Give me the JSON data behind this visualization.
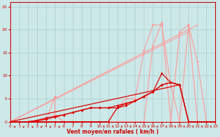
{
  "xlabel": "Vent moyen/en rafales ( km/h )",
  "xlim": [
    0,
    23
  ],
  "ylim": [
    0,
    26
  ],
  "xticks": [
    0,
    1,
    2,
    3,
    4,
    5,
    6,
    7,
    8,
    9,
    10,
    11,
    12,
    13,
    14,
    15,
    16,
    17,
    18,
    19,
    20,
    21,
    22,
    23
  ],
  "yticks": [
    0,
    5,
    10,
    15,
    20,
    25
  ],
  "bg_color": "#cce8e8",
  "grid_color": "#aacccc",
  "salmon_line1_x": [
    0,
    1,
    2,
    3,
    4,
    5,
    6,
    7,
    8,
    9,
    10,
    11,
    12,
    13,
    14,
    15,
    16,
    17,
    18,
    19,
    20,
    21,
    22,
    23
  ],
  "salmon_line1_y": [
    0,
    0,
    0,
    0,
    0,
    0,
    0,
    0,
    0,
    0,
    0,
    0,
    3.0,
    5.0,
    5.0,
    15.5,
    21.0,
    21.0,
    8.0,
    0,
    21.0,
    13.0,
    0,
    0
  ],
  "salmon_line2_x": [
    0,
    1,
    2,
    3,
    4,
    5,
    6,
    7,
    8,
    9,
    10,
    11,
    12,
    13,
    14,
    15,
    16,
    17,
    18,
    19,
    20,
    21,
    22,
    23
  ],
  "salmon_line2_y": [
    0,
    0,
    0,
    0,
    0,
    0,
    0,
    0,
    0,
    0,
    0,
    0,
    0,
    0,
    0,
    0,
    16.5,
    21.5,
    0,
    19.5,
    21.0,
    0,
    0,
    0
  ],
  "salmon_line3_x": [
    0,
    20
  ],
  "salmon_line3_y": [
    0,
    19.5
  ],
  "salmon_line4_x": [
    0,
    21
  ],
  "salmon_line4_y": [
    0,
    21.0
  ],
  "dark_line1_x": [
    0,
    1,
    2,
    3,
    4,
    5,
    6,
    7,
    8,
    9,
    10,
    11,
    12,
    13,
    14,
    15,
    16,
    17,
    18,
    19,
    20,
    21,
    22,
    23
  ],
  "dark_line1_y": [
    0,
    0,
    0,
    0,
    0,
    5.5,
    1.5,
    0,
    0,
    0,
    0,
    0,
    0,
    0,
    0,
    0,
    0,
    0,
    0,
    0,
    0,
    0,
    0,
    0
  ],
  "red_line1_x": [
    0,
    1,
    2,
    3,
    4,
    5,
    6,
    7,
    8,
    9,
    10,
    11,
    12,
    13,
    14,
    15,
    16,
    17,
    18,
    19,
    20,
    21,
    22,
    23
  ],
  "red_line1_y": [
    0,
    0,
    0,
    0.3,
    0.8,
    1.2,
    1.5,
    2.0,
    2.5,
    3.0,
    3.0,
    3.0,
    3.5,
    4.0,
    4.5,
    5.5,
    6.5,
    10.5,
    8.5,
    8.0,
    0,
    0,
    0,
    0
  ],
  "red_line2_x": [
    0,
    1,
    2,
    3,
    4,
    5,
    6,
    7,
    8,
    9,
    10,
    11,
    12,
    13,
    14,
    15,
    16,
    17,
    18,
    19,
    20,
    21,
    22,
    23
  ],
  "red_line2_y": [
    0,
    0,
    0,
    0.2,
    0.5,
    1.0,
    1.5,
    2.0,
    2.5,
    3.0,
    3.0,
    3.0,
    3.0,
    4.0,
    4.5,
    5.5,
    6.5,
    8.0,
    8.5,
    8.0,
    0,
    0,
    0,
    0
  ],
  "red_line3_x": [
    0,
    1,
    2,
    3,
    4,
    5,
    6,
    7,
    8,
    9,
    10,
    11,
    12,
    13,
    14,
    15,
    16,
    17,
    18,
    19,
    20,
    21,
    22,
    23
  ],
  "red_line3_y": [
    0,
    0,
    0,
    0,
    0,
    0,
    0,
    0,
    0,
    0,
    0,
    0,
    3.0,
    3.5,
    4.5,
    5.5,
    6.5,
    8.0,
    8.5,
    8.0,
    0,
    0,
    0,
    0
  ],
  "red_line4_x": [
    0,
    1,
    2,
    3,
    4,
    5,
    6,
    7,
    8,
    9,
    10,
    11,
    12,
    13,
    14,
    15,
    16,
    17,
    18,
    19,
    20,
    21,
    22,
    23
  ],
  "red_line4_y": [
    0,
    0,
    0,
    0,
    0,
    0,
    0,
    0,
    0,
    0,
    0,
    0,
    0,
    0,
    0,
    0,
    0,
    0,
    8.0,
    8.0,
    0,
    0,
    0,
    0
  ],
  "salmon_color": "#ff9999",
  "red_color": "#dd0000",
  "darkred_color": "#990000"
}
